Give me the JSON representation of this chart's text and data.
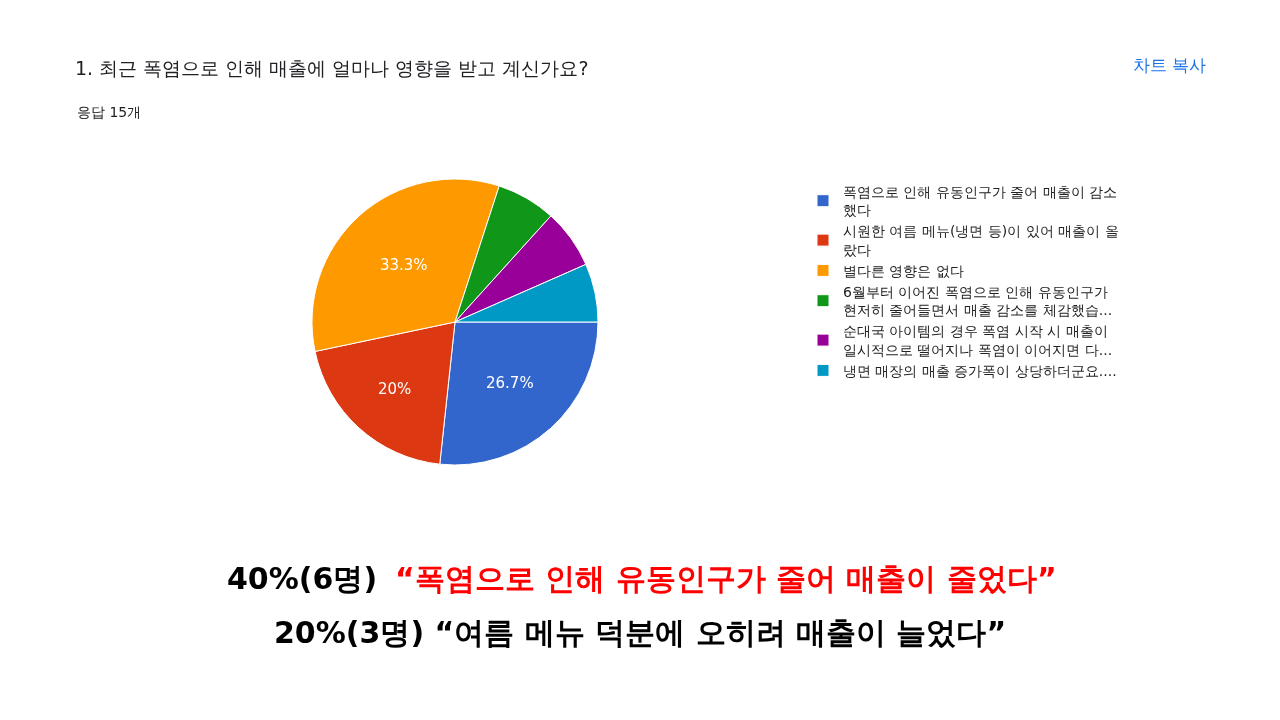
{
  "chart_data": {
    "type": "pie",
    "title": "1. 최근 폭염으로 인해 매출에 얼마나 영향을 받고 계신가요?",
    "subtitle": "응답 15개",
    "categories": [
      "폭염으로 인해 유동인구가 줄어 매출이 감소\n했다",
      "시원한 여름 메뉴(냉면 등)이 있어 매출이 올\n랐다",
      "별다른 영향은 없다",
      "6월부터 이어진 폭염으로 인해 유동인구가\n현저히 줄어들면서 매출 감소를 체감했습...",
      "순대국 아이템의 경우 폭염 시작 시 매출이\n일시적으로 떨어지나 폭염이 이어지면 다...",
      "냉면 매장의 매출 증가폭이 상당하더군요...."
    ],
    "values": [
      26.7,
      20,
      33.3,
      6.7,
      6.7,
      6.6
    ],
    "colors": [
      "#3366cc",
      "#dc3912",
      "#ff9900",
      "#109618",
      "#990099",
      "#0099c6"
    ],
    "value_labels": [
      "26.7%",
      "20%",
      "33.3%",
      null,
      null,
      null
    ],
    "legend": "right",
    "annotations": [
      "차트 복사",
      "40%(6명)",
      "“폭염으로 인해 유동인구가 줄어 매출이 줄었다”",
      "20%(3명) “여름 메뉴 덕분에 오히려 매출이 늘었다”"
    ]
  }
}
